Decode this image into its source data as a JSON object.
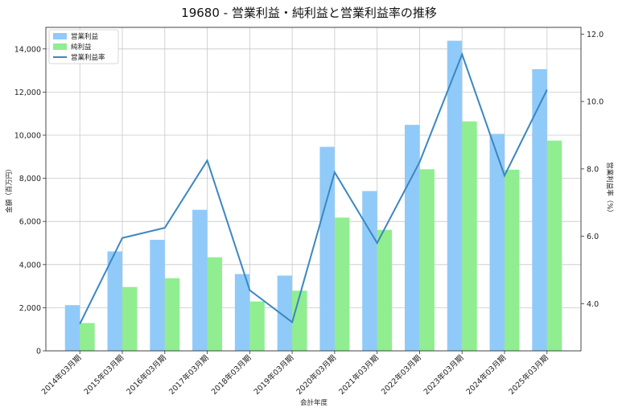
{
  "chart_data": {
    "type": "bar",
    "title": "19680 - 営業利益・純利益と営業利益率の推移",
    "xlabel": "会計年度",
    "ylabel": "金額（百万円）",
    "y2label": "営業利益率（%）",
    "categories": [
      "2014年03月期",
      "2015年03月期",
      "2016年03月期",
      "2017年03月期",
      "2018年03月期",
      "2019年03月期",
      "2020年03月期",
      "2021年03月期",
      "2022年03月期",
      "2023年03月期",
      "2024年03月期",
      "2025年03月期"
    ],
    "series": [
      {
        "name": "営業利益",
        "type": "bar",
        "axis": "left",
        "color": "#90CAF9",
        "values": [
          2120,
          4610,
          5150,
          6540,
          3560,
          3490,
          9460,
          7410,
          10480,
          14380,
          10060,
          13060
        ]
      },
      {
        "name": "純利益",
        "type": "bar",
        "axis": "left",
        "color": "#90EE90",
        "values": [
          1290,
          2960,
          3370,
          4340,
          2290,
          2790,
          6180,
          5610,
          8420,
          10640,
          8400,
          9750
        ]
      },
      {
        "name": "営業利益率",
        "type": "line",
        "axis": "right",
        "color": "#3A87C2",
        "values": [
          3.4,
          5.95,
          6.25,
          8.25,
          4.4,
          3.45,
          7.9,
          5.8,
          8.2,
          11.4,
          7.8,
          10.35
        ]
      }
    ],
    "ylim": [
      0,
      15000
    ],
    "yticks": [
      0,
      2000,
      4000,
      6000,
      8000,
      10000,
      12000,
      14000
    ],
    "ytick_labels": [
      "0",
      "2,000",
      "4,000",
      "6,000",
      "8,000",
      "10,000",
      "12,000",
      "14,000"
    ],
    "y2lim": [
      2.6,
      12.2
    ],
    "y2ticks": [
      4.0,
      6.0,
      8.0,
      10.0,
      12.0
    ],
    "y2tick_labels": [
      "4.0",
      "6.0",
      "8.0",
      "10.0",
      "12.0"
    ],
    "grid": true,
    "legend": "top-left"
  }
}
